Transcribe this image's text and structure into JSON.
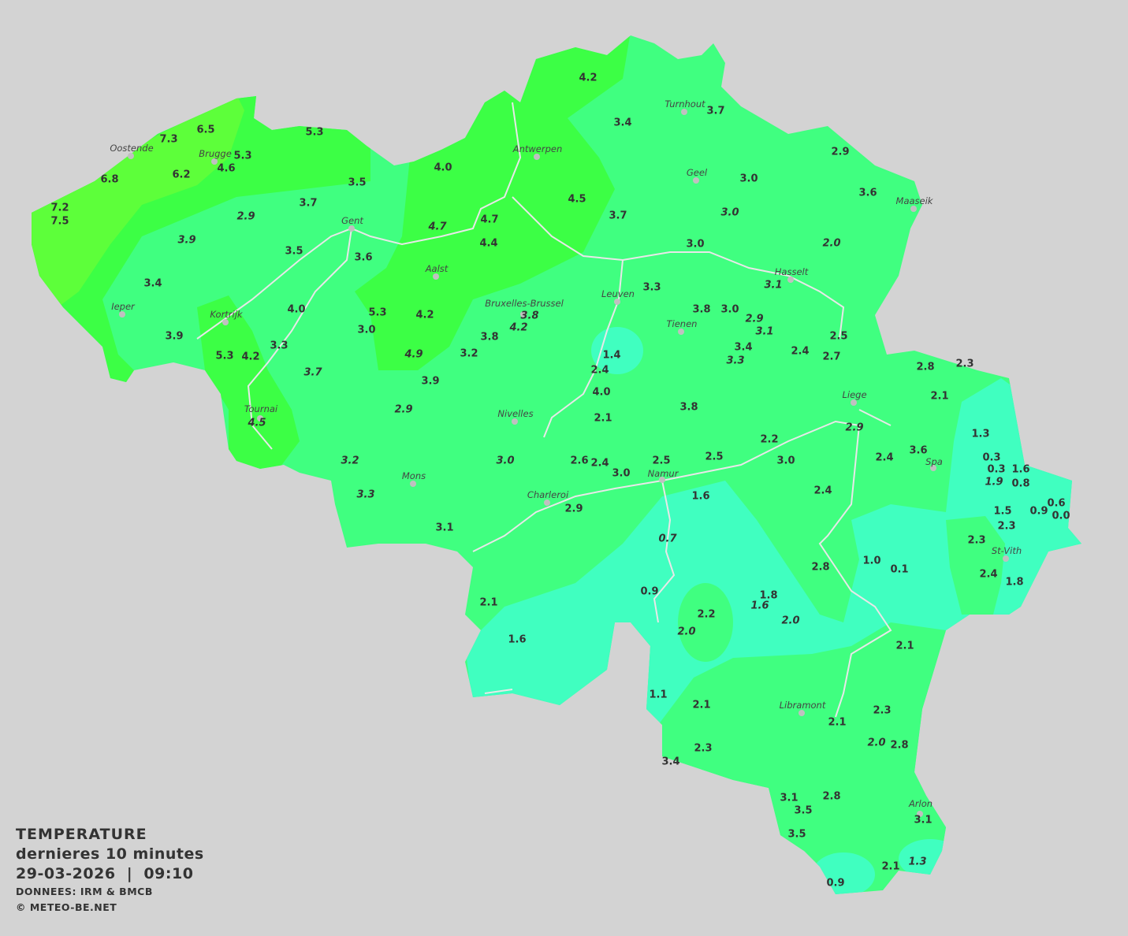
{
  "legend": {
    "title": "TEMPERATURE",
    "period": "dernieres 10 minutes",
    "datetime": "29-03-2026  |  09:10",
    "source": "DONNEES: IRM & BMCB",
    "copyright": "© METEO-BE.NET"
  },
  "colors": {
    "background": "#d3d3d3",
    "above_5": "#5dff3a",
    "4_to_5": "#3cff45",
    "2_to_4": "#40ff80",
    "below_2": "#40ffc0",
    "rivers": "#e8e8e8"
  },
  "cities": [
    "Oostende",
    "Brugge",
    "Antwerpen",
    "Turnhout",
    "Geel",
    "Maaseik",
    "Gent",
    "Hasselt",
    "Aalst",
    "Leuven",
    "Ieper",
    "Kortrijk",
    "Bruxelles-Brussel",
    "Tienen",
    "Liege",
    "Tournai",
    "Nivelles",
    "Spa",
    "Mons",
    "Namur",
    "Charleroi",
    "St-Vith",
    "Libramont",
    "Arlon"
  ],
  "stations": [
    {
      "v": "4.2"
    },
    {
      "v": "3.4"
    },
    {
      "v": "3.7"
    },
    {
      "v": "6.5"
    },
    {
      "v": "7.3"
    },
    {
      "v": "5.3"
    },
    {
      "v": "5.3"
    },
    {
      "v": "4.6"
    },
    {
      "v": "6.2"
    },
    {
      "v": "6.8"
    },
    {
      "v": "4.0"
    },
    {
      "v": "2.9"
    },
    {
      "v": "3.0"
    },
    {
      "v": "3.5"
    },
    {
      "v": "4.5"
    },
    {
      "v": "3.6"
    },
    {
      "v": "7.2"
    },
    {
      "v": "7.5"
    },
    {
      "v": "3.7"
    },
    {
      "v": "2.9",
      "i": true
    },
    {
      "v": "4.7"
    },
    {
      "v": "3.7"
    },
    {
      "v": "3.0",
      "i": true
    },
    {
      "v": "4.7",
      "i": true
    },
    {
      "v": "3.9",
      "i": true
    },
    {
      "v": "4.4"
    },
    {
      "v": "3.0"
    },
    {
      "v": "2.0",
      "i": true
    },
    {
      "v": "3.5"
    },
    {
      "v": "3.6"
    },
    {
      "v": "3.1",
      "i": true
    },
    {
      "v": "3.4"
    },
    {
      "v": "3.3"
    },
    {
      "v": "4.0"
    },
    {
      "v": "5.3"
    },
    {
      "v": "4.2"
    },
    {
      "v": "3.8",
      "i": true
    },
    {
      "v": "4.2",
      "i": true
    },
    {
      "v": "3.8"
    },
    {
      "v": "3.0"
    },
    {
      "v": "2.9",
      "i": true
    },
    {
      "v": "3.1",
      "i": true
    },
    {
      "v": "3.9"
    },
    {
      "v": "3.0"
    },
    {
      "v": "3.8"
    },
    {
      "v": "2.5"
    },
    {
      "v": "3.3"
    },
    {
      "v": "3.4"
    },
    {
      "v": "1.4"
    },
    {
      "v": "3.3",
      "i": true
    },
    {
      "v": "2.4"
    },
    {
      "v": "5.3"
    },
    {
      "v": "4.2"
    },
    {
      "v": "4.9",
      "i": true
    },
    {
      "v": "3.2"
    },
    {
      "v": "2.7"
    },
    {
      "v": "2.8"
    },
    {
      "v": "2.3"
    },
    {
      "v": "2.4"
    },
    {
      "v": "3.7",
      "i": true
    },
    {
      "v": "3.9"
    },
    {
      "v": "4.0"
    },
    {
      "v": "2.1"
    },
    {
      "v": "4.5",
      "i": true
    },
    {
      "v": "2.9",
      "i": true
    },
    {
      "v": "3.8"
    },
    {
      "v": "2.1"
    },
    {
      "v": "2.9",
      "i": true
    },
    {
      "v": "1.3"
    },
    {
      "v": "2.2"
    },
    {
      "v": "3.2",
      "i": true
    },
    {
      "v": "3.0",
      "i": true
    },
    {
      "v": "2.6"
    },
    {
      "v": "2.4"
    },
    {
      "v": "2.5"
    },
    {
      "v": "2.5"
    },
    {
      "v": "3.0"
    },
    {
      "v": "2.4"
    },
    {
      "v": "3.6"
    },
    {
      "v": "0.3"
    },
    {
      "v": "0.3"
    },
    {
      "v": "1.6"
    },
    {
      "v": "3.0"
    },
    {
      "v": "1.9",
      "i": true
    },
    {
      "v": "0.8"
    },
    {
      "v": "3.3",
      "i": true
    },
    {
      "v": "2.4"
    },
    {
      "v": "1.6"
    },
    {
      "v": "2.9"
    },
    {
      "v": "0.6"
    },
    {
      "v": "1.5"
    },
    {
      "v": "0.9"
    },
    {
      "v": "0.0"
    },
    {
      "v": "3.1"
    },
    {
      "v": "2.3"
    },
    {
      "v": "0.7",
      "i": true
    },
    {
      "v": "2.3"
    },
    {
      "v": "1.0"
    },
    {
      "v": "0.1"
    },
    {
      "v": "2.8"
    },
    {
      "v": "2.4"
    },
    {
      "v": "1.8"
    },
    {
      "v": "0.9"
    },
    {
      "v": "1.8"
    },
    {
      "v": "2.2"
    },
    {
      "v": "1.6",
      "i": true
    },
    {
      "v": "2.1"
    },
    {
      "v": "2.0",
      "i": true
    },
    {
      "v": "2.0",
      "i": true
    },
    {
      "v": "1.6"
    },
    {
      "v": "2.1"
    },
    {
      "v": "1.1"
    },
    {
      "v": "2.1"
    },
    {
      "v": "2.3"
    },
    {
      "v": "2.1"
    },
    {
      "v": "2.0",
      "i": true
    },
    {
      "v": "2.8"
    },
    {
      "v": "2.3"
    },
    {
      "v": "3.4"
    },
    {
      "v": "3.1"
    },
    {
      "v": "2.8"
    },
    {
      "v": "3.5"
    },
    {
      "v": "3.1"
    },
    {
      "v": "3.5"
    },
    {
      "v": "1.3",
      "i": true
    },
    {
      "v": "2.1"
    },
    {
      "v": "0.9"
    }
  ]
}
